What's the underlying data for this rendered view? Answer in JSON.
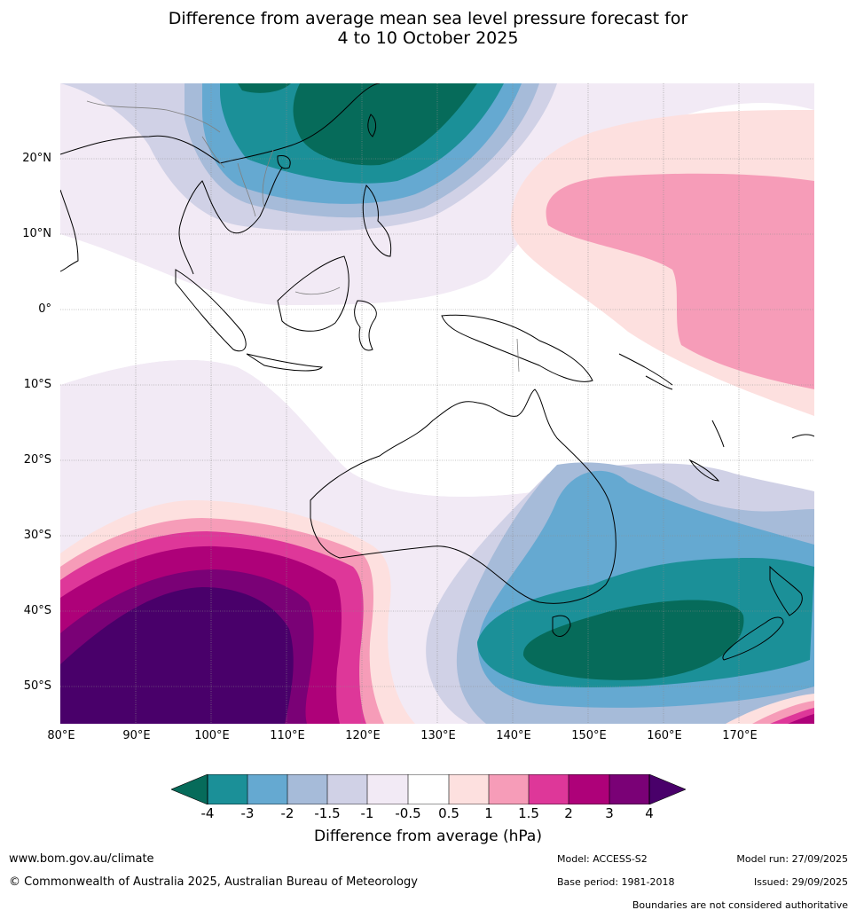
{
  "title": {
    "line1": "Difference from average mean sea level pressure forecast for",
    "line2": "4 to 10 October 2025"
  },
  "map": {
    "lat_labels": [
      "20°N",
      "10°N",
      "0°",
      "10°S",
      "20°S",
      "30°S",
      "40°S",
      "50°S"
    ],
    "lon_labels": [
      "80°E",
      "90°E",
      "100°E",
      "110°E",
      "120°E",
      "130°E",
      "140°E",
      "150°E",
      "160°E",
      "170°E"
    ],
    "lat_range": [
      -55,
      30
    ],
    "lon_range": [
      80,
      180
    ]
  },
  "colorbar": {
    "ticks": [
      "-4",
      "-3",
      "-2",
      "-1.5",
      "-1",
      "-0.5",
      "0.5",
      "1",
      "1.5",
      "2",
      "3",
      "4"
    ],
    "colors": [
      "#066b5a",
      "#1b9098",
      "#65a9d1",
      "#a6bbd9",
      "#d0d1e6",
      "#f2eaf5",
      "#ffffff",
      "#fde0df",
      "#f69cb8",
      "#de3799",
      "#ae0179",
      "#7a0176",
      "#49006a"
    ],
    "label": "Difference from average (hPa)"
  },
  "footer": {
    "website": "www.bom.gov.au/climate",
    "copyright": "© Commonwealth of Australia 2025, Australian Bureau of Meteorology",
    "model": "Model: ACCESS-S2",
    "base_period": "Base period: 1981-2018",
    "model_run": "Model run: 27/09/2025",
    "issued": "Issued: 29/09/2025",
    "disclaimer": "Boundaries are not considered authoritative"
  }
}
